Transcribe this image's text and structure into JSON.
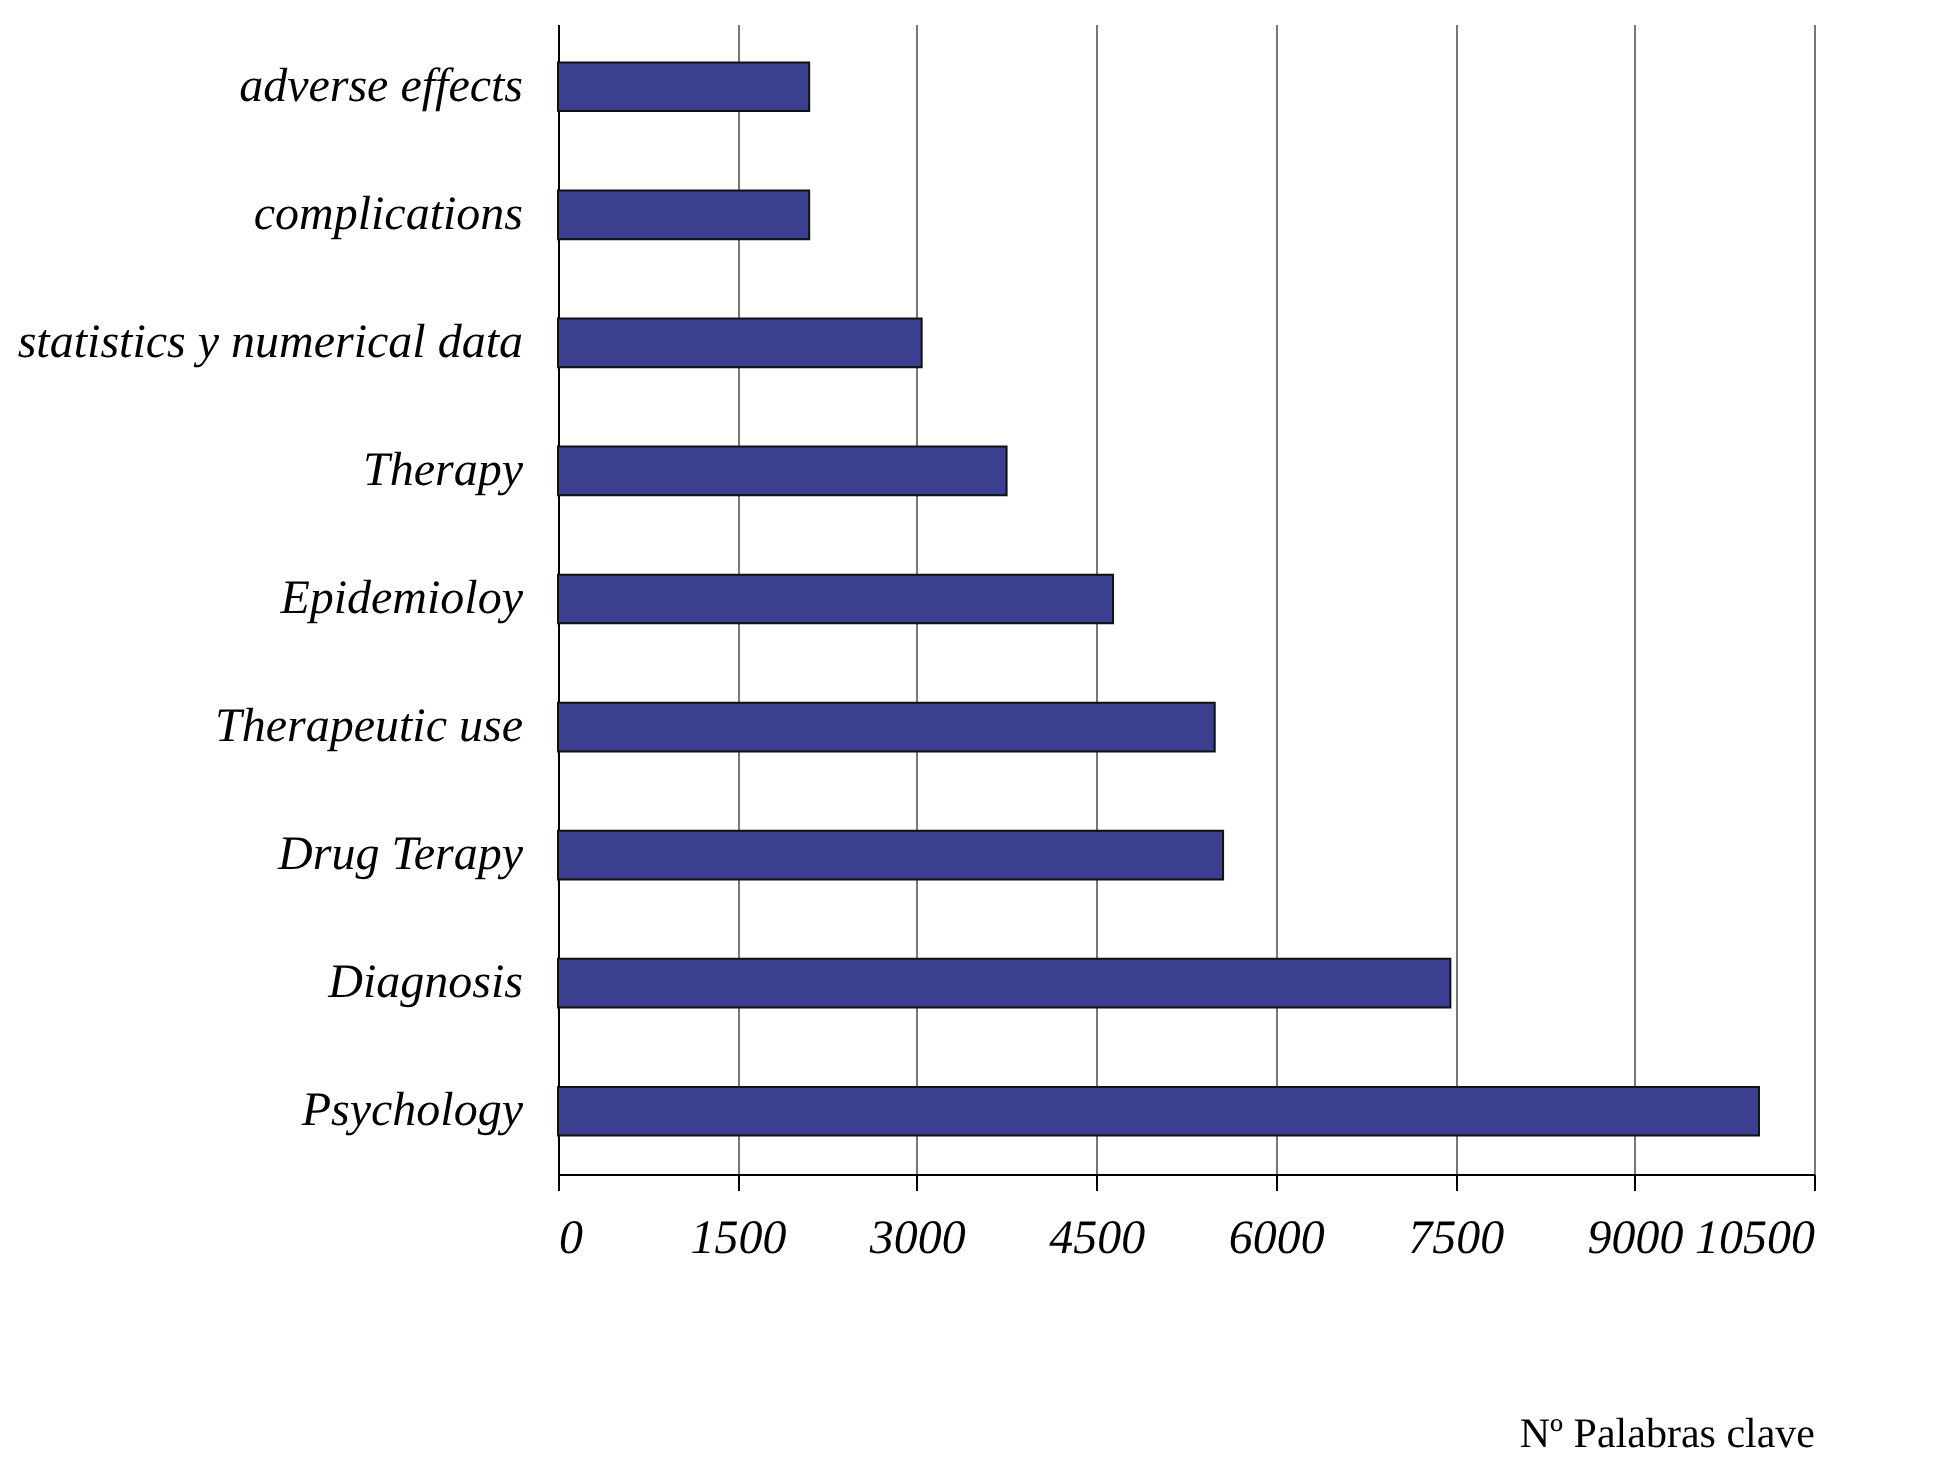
{
  "chart_data": {
    "type": "bar",
    "orientation": "horizontal",
    "xlabel": "Nº Palabras clave",
    "categories": [
      "adverse effects",
      "complications",
      "statistics y numerical data",
      "Therapy",
      "Epidemioloy",
      "Therapeutic use",
      "Drug Terapy",
      "Diagnosis",
      "Psychology"
    ],
    "values": [
      2100,
      2100,
      3040,
      3750,
      4640,
      5490,
      5560,
      7460,
      10040
    ],
    "color": "#3b3f8f",
    "xlim": [
      0,
      10500
    ],
    "xticks": [
      0,
      1500,
      3000,
      4500,
      6000,
      7500,
      9000,
      10500
    ],
    "grid": "x"
  }
}
